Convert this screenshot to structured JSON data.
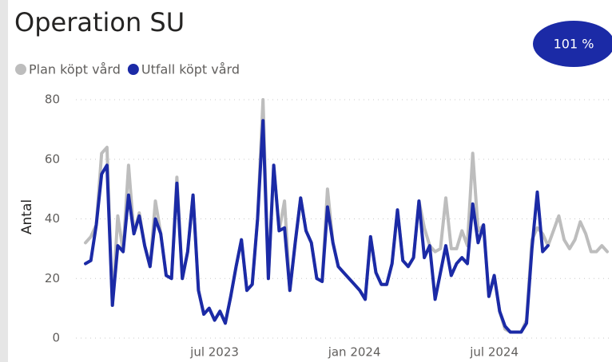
{
  "chart_data": {
    "type": "line",
    "title": "Operation SU",
    "badge": "101 %",
    "y_label": "Antal",
    "categories": [
      null,
      null,
      null,
      null,
      null,
      null,
      null,
      null,
      null,
      null,
      null,
      null,
      null,
      null,
      null,
      null,
      null,
      null,
      null,
      null,
      null,
      null,
      null,
      null,
      "jul 2023",
      null,
      null,
      null,
      null,
      null,
      null,
      null,
      null,
      null,
      null,
      null,
      null,
      null,
      null,
      null,
      null,
      null,
      null,
      null,
      null,
      null,
      null,
      null,
      null,
      null,
      "jan 2024",
      null,
      null,
      null,
      null,
      null,
      null,
      null,
      null,
      null,
      null,
      null,
      null,
      null,
      null,
      null,
      null,
      null,
      null,
      null,
      null,
      null,
      null,
      null,
      null,
      null,
      "jul 2024",
      null,
      null,
      null,
      null,
      null,
      null,
      null,
      null,
      null,
      null,
      null,
      null,
      null,
      null,
      null,
      null,
      null,
      null,
      null,
      null,
      null
    ],
    "series": [
      {
        "name": "Plan köpt vård",
        "color": "#bdbdbd",
        "values": [
          32,
          34,
          38,
          62,
          64,
          11,
          41,
          29,
          58,
          35,
          42,
          31,
          24,
          46,
          35,
          21,
          20,
          54,
          20,
          29,
          48,
          16,
          8,
          10,
          6,
          9,
          5,
          14,
          24,
          33,
          16,
          18,
          40,
          80,
          20,
          58,
          36,
          46,
          16,
          32,
          47,
          36,
          32,
          20,
          19,
          50,
          32,
          24,
          22,
          20,
          18,
          16,
          13,
          34,
          22,
          18,
          18,
          25,
          43,
          26,
          24,
          27,
          46,
          37,
          31,
          29,
          30,
          47,
          30,
          30,
          36,
          31,
          62,
          36,
          38,
          14,
          21,
          9,
          3,
          2,
          2,
          2,
          6,
          33,
          37,
          35,
          31,
          36,
          41,
          33,
          30,
          33,
          39,
          35,
          29,
          29,
          31,
          29
        ]
      },
      {
        "name": "Utfall köpt vård",
        "color": "#1b2aa6",
        "values": [
          25,
          26,
          38,
          55,
          58,
          11,
          31,
          29,
          48,
          35,
          41,
          31,
          24,
          40,
          35,
          21,
          20,
          52,
          20,
          29,
          48,
          16,
          8,
          10,
          6,
          9,
          5,
          14,
          24,
          33,
          16,
          18,
          40,
          73,
          20,
          58,
          36,
          37,
          16,
          32,
          47,
          36,
          32,
          20,
          19,
          44,
          32,
          24,
          22,
          20,
          18,
          16,
          13,
          34,
          22,
          18,
          18,
          25,
          43,
          26,
          24,
          27,
          46,
          27,
          31,
          13,
          22,
          31,
          21,
          25,
          27,
          25,
          45,
          32,
          38,
          14,
          21,
          9,
          4,
          2,
          2,
          2,
          5,
          30,
          49,
          29,
          31,
          null,
          null,
          null,
          null,
          null,
          null,
          null,
          null,
          null,
          null,
          null
        ]
      }
    ],
    "ylim": [
      0,
      80
    ],
    "yticks": [
      0,
      20,
      40,
      60,
      80
    ],
    "grid": true
  }
}
